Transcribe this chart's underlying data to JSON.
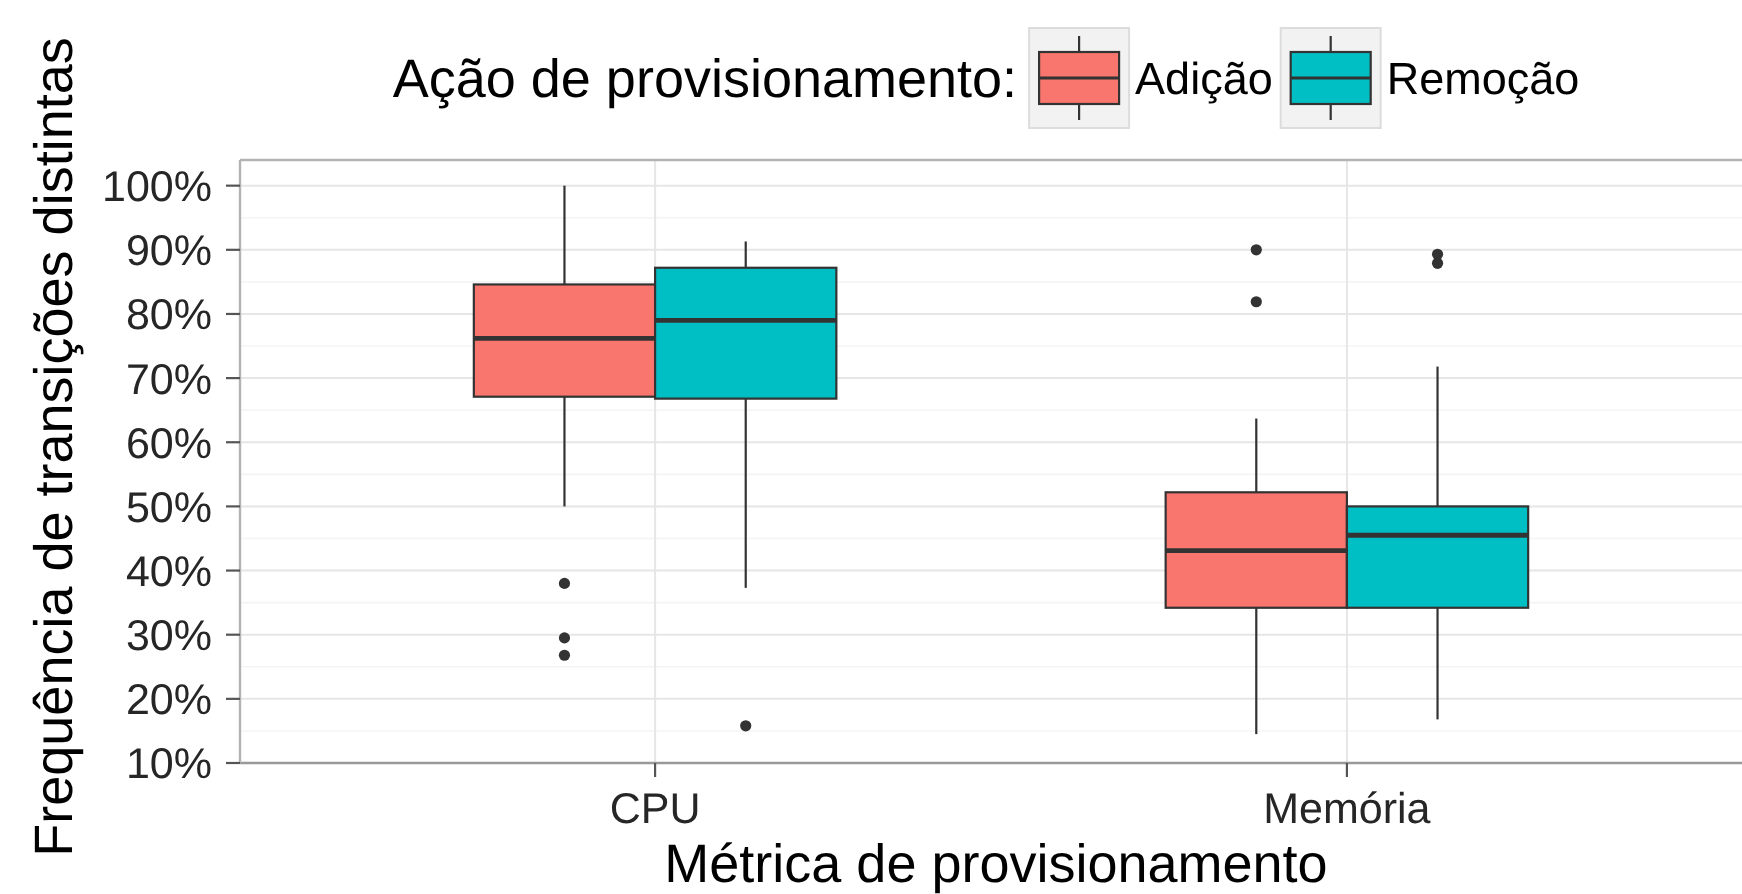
{
  "chart_data": {
    "type": "box",
    "xlabel": "Métrica de provisionamento",
    "ylabel": "Frequência de transições distintas",
    "legend_title": "Ação de provisionamento:",
    "categories": [
      "CPU",
      "Memória"
    ],
    "series": [
      {
        "name": "Adição",
        "color": "#f8766d",
        "boxes": [
          {
            "low": 50,
            "q1": 67.1,
            "median": 76.2,
            "q3": 84.6,
            "high": 100,
            "outliers": [
              38,
              29.5,
              26.8
            ]
          },
          {
            "low": 14.5,
            "q1": 34.2,
            "median": 43.1,
            "q3": 52.2,
            "high": 63.7,
            "outliers": [
              90,
              81.9
            ]
          }
        ]
      },
      {
        "name": "Remoção",
        "color": "#00bfc4",
        "boxes": [
          {
            "low": 37.3,
            "q1": 66.8,
            "median": 79,
            "q3": 87.2,
            "high": 91.3,
            "outliers": [
              15.8
            ]
          },
          {
            "low": 16.8,
            "q1": 34.2,
            "median": 45.5,
            "q3": 50,
            "high": 71.8,
            "outliers": [
              89.3,
              87.9
            ]
          }
        ]
      }
    ],
    "ylim": [
      10,
      104
    ],
    "yticks": [
      {
        "value": 10,
        "label": "10%"
      },
      {
        "value": 20,
        "label": "20%"
      },
      {
        "value": 30,
        "label": "30%"
      },
      {
        "value": 40,
        "label": "40%"
      },
      {
        "value": 50,
        "label": "50%"
      },
      {
        "value": 60,
        "label": "60%"
      },
      {
        "value": 70,
        "label": "70%"
      },
      {
        "value": 80,
        "label": "80%"
      },
      {
        "value": 90,
        "label": "90%"
      },
      {
        "value": 100,
        "label": "100%"
      }
    ],
    "grid": true,
    "legend": "top"
  }
}
